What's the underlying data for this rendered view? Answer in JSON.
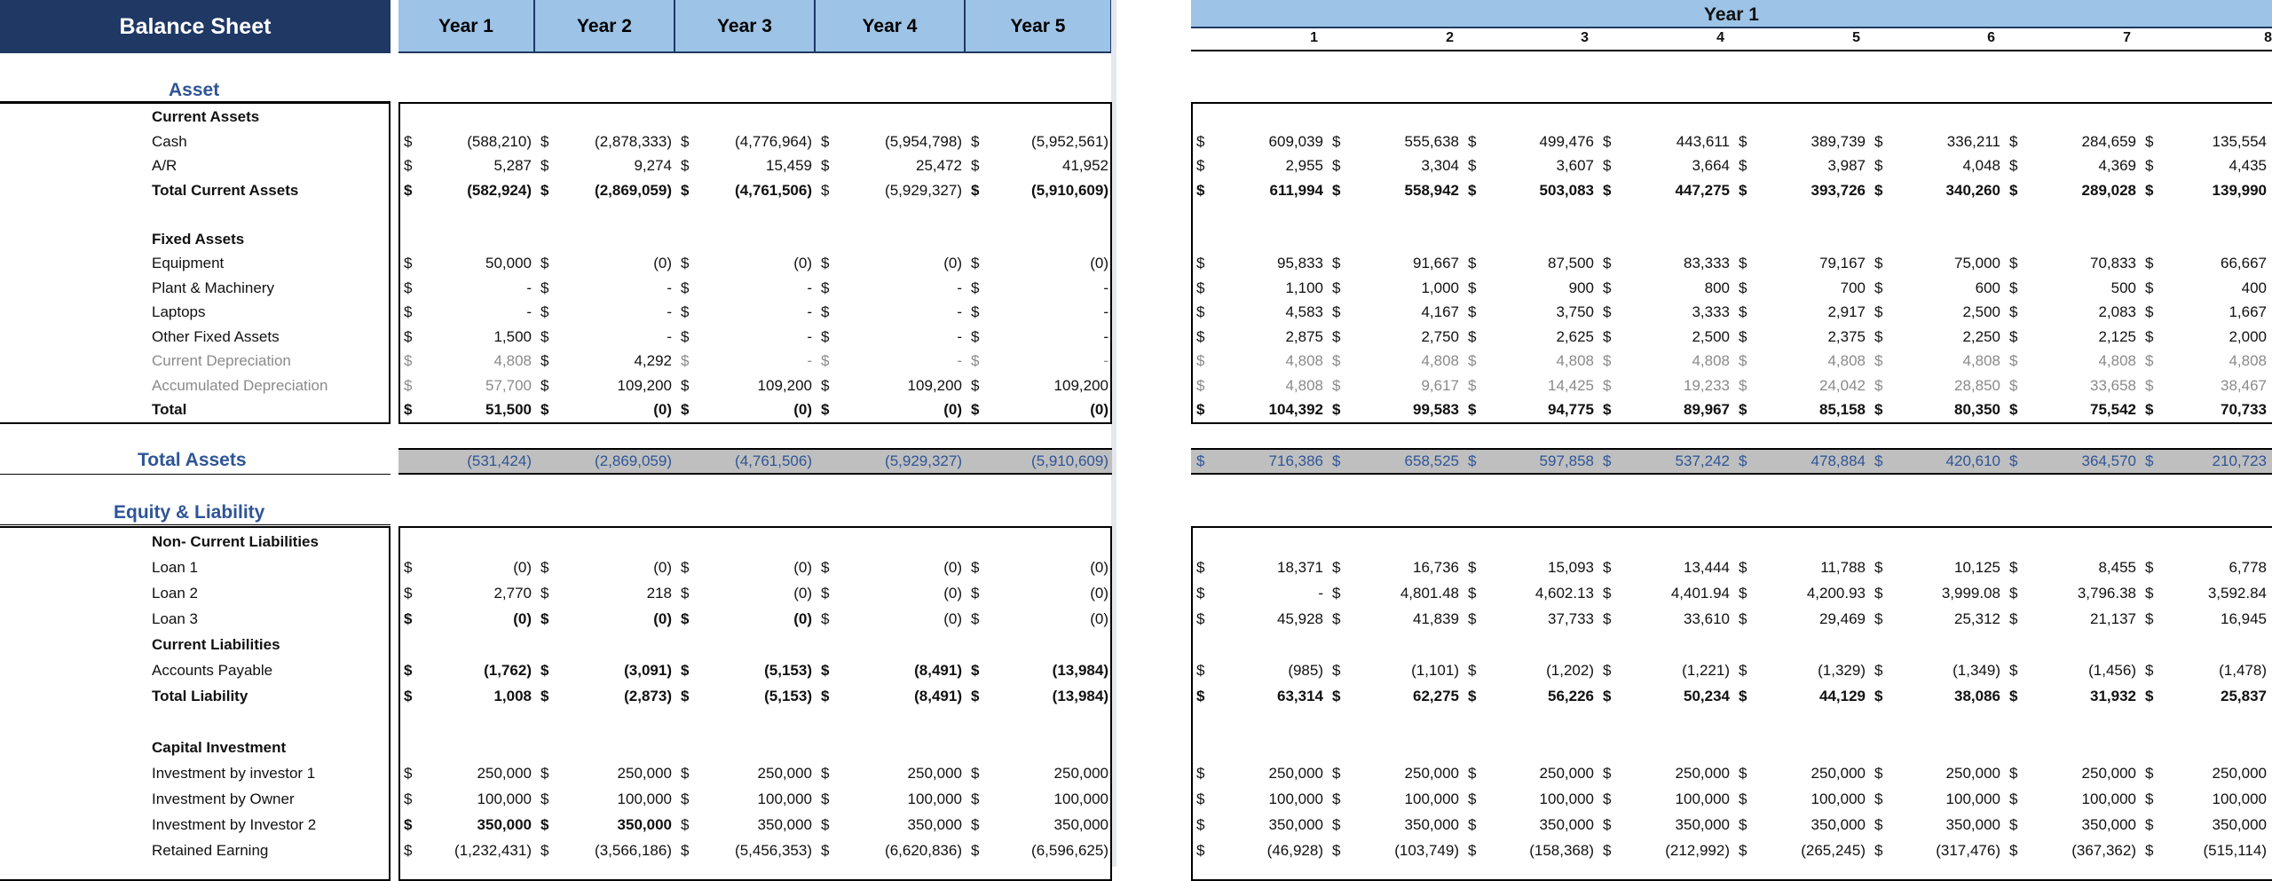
{
  "title": "Balance Sheet",
  "years": [
    "Year 1",
    "Year 2",
    "Year 3",
    "Year 4",
    "Year 5"
  ],
  "right_header": {
    "year_label": "Year 1",
    "months": [
      "1",
      "2",
      "3",
      "4",
      "5",
      "6",
      "7",
      "8"
    ]
  },
  "currency_symbol": "$",
  "colors": {
    "header_navy": "#1f3864",
    "header_blue": "#9dc3e6",
    "section_blue": "#2f5597",
    "total_band": "#bfbfbf"
  },
  "sections": {
    "asset": "Asset",
    "total_assets": "Total Assets",
    "equity_liability": "Equity & Liability"
  },
  "rows": [
    {
      "label": "Current Assets",
      "style": "bold",
      "annual": [],
      "monthly": []
    },
    {
      "label": "Cash",
      "style": "",
      "annual": [
        "(588,210)",
        "(2,878,333)",
        "(4,776,964)",
        "(5,954,798)",
        "(5,952,561)"
      ],
      "monthly": [
        "609,039",
        "555,638",
        "499,476",
        "443,611",
        "389,739",
        "336,211",
        "284,659",
        "135,554"
      ]
    },
    {
      "label": "A/R",
      "style": "",
      "annual": [
        "5,287",
        "9,274",
        "15,459",
        "25,472",
        "41,952"
      ],
      "monthly": [
        "2,955",
        "3,304",
        "3,607",
        "3,664",
        "3,987",
        "4,048",
        "4,369",
        "4,435"
      ]
    },
    {
      "label": "Total Current Assets",
      "style": "bold",
      "annual": [
        "(582,924)",
        "(2,869,059)",
        "(4,761,506)",
        "(5,929,327)",
        "(5,910,609)"
      ],
      "annual_bold": [
        true,
        true,
        true,
        false,
        true
      ],
      "monthly": [
        "611,994",
        "558,942",
        "503,083",
        "447,275",
        "393,726",
        "340,260",
        "289,028",
        "139,990"
      ]
    },
    {
      "label": "",
      "style": "",
      "annual": [],
      "monthly": []
    },
    {
      "label": "Fixed Assets",
      "style": "bold",
      "annual": [],
      "monthly": []
    },
    {
      "label": "Equipment",
      "style": "",
      "annual": [
        "50,000",
        "(0)",
        "(0)",
        "(0)",
        "(0)"
      ],
      "monthly": [
        "95,833",
        "91,667",
        "87,500",
        "83,333",
        "79,167",
        "75,000",
        "70,833",
        "66,667"
      ]
    },
    {
      "label": "Plant & Machinery",
      "style": "",
      "annual": [
        "-",
        "-",
        "-",
        "-",
        "-"
      ],
      "monthly": [
        "1,100",
        "1,000",
        "900",
        "800",
        "700",
        "600",
        "500",
        "400"
      ]
    },
    {
      "label": "Laptops",
      "style": "",
      "annual": [
        "-",
        "-",
        "-",
        "-",
        "-"
      ],
      "monthly": [
        "4,583",
        "4,167",
        "3,750",
        "3,333",
        "2,917",
        "2,500",
        "2,083",
        "1,667"
      ]
    },
    {
      "label": "Other Fixed Assets",
      "style": "",
      "annual": [
        "1,500",
        "-",
        "-",
        "-",
        "-"
      ],
      "monthly": [
        "2,875",
        "2,750",
        "2,625",
        "2,500",
        "2,375",
        "2,250",
        "2,125",
        "2,000"
      ]
    },
    {
      "label": "Current Depreciation",
      "style": "grey",
      "annual": [
        "4,808",
        "4,292",
        "-",
        "-",
        "-"
      ],
      "annual_grey": [
        true,
        false,
        true,
        true,
        true
      ],
      "monthly": [
        "4,808",
        "4,808",
        "4,808",
        "4,808",
        "4,808",
        "4,808",
        "4,808",
        "4,808"
      ]
    },
    {
      "label": "Accumulated Depreciation",
      "style": "grey",
      "annual": [
        "57,700",
        "109,200",
        "109,200",
        "109,200",
        "109,200"
      ],
      "annual_grey": [
        true,
        false,
        false,
        false,
        false
      ],
      "monthly": [
        "4,808",
        "9,617",
        "14,425",
        "19,233",
        "24,042",
        "28,850",
        "33,658",
        "38,467"
      ]
    },
    {
      "label": "Total",
      "style": "bold",
      "annual": [
        "51,500",
        "(0)",
        "(0)",
        "(0)",
        "(0)"
      ],
      "monthly": [
        "104,392",
        "99,583",
        "94,775",
        "89,967",
        "85,158",
        "80,350",
        "75,542",
        "70,733"
      ]
    }
  ],
  "total_assets": {
    "annual": [
      "(531,424)",
      "(2,869,059)",
      "(4,761,506)",
      "(5,929,327)",
      "(5,910,609)"
    ],
    "monthly": [
      "716,386",
      "658,525",
      "597,858",
      "537,242",
      "478,884",
      "420,610",
      "364,570",
      "210,723"
    ]
  },
  "rows2": [
    {
      "label": "Non- Current Liabilities",
      "style": "bold",
      "annual": [],
      "monthly": []
    },
    {
      "label": "Loan 1",
      "style": "",
      "annual": [
        "(0)",
        "(0)",
        "(0)",
        "(0)",
        "(0)"
      ],
      "monthly": [
        "18,371",
        "16,736",
        "15,093",
        "13,444",
        "11,788",
        "10,125",
        "8,455",
        "6,778"
      ]
    },
    {
      "label": "Loan 2",
      "style": "",
      "annual": [
        "2,770",
        "218",
        "(0)",
        "(0)",
        "(0)"
      ],
      "monthly": [
        "-",
        "4,801.48",
        "4,602.13",
        "4,401.94",
        "4,200.93",
        "3,999.08",
        "3,796.38",
        "3,592.84"
      ]
    },
    {
      "label": "Loan 3",
      "style": "",
      "annual": [
        "(0)",
        "(0)",
        "(0)",
        "(0)",
        "(0)"
      ],
      "annual_bold": [
        true,
        true,
        true,
        false,
        false
      ],
      "monthly": [
        "45,928",
        "41,839",
        "37,733",
        "33,610",
        "29,469",
        "25,312",
        "21,137",
        "16,945"
      ]
    },
    {
      "label": "Current Liabilities",
      "style": "bold",
      "annual": [],
      "monthly": []
    },
    {
      "label": "Accounts Payable",
      "style": "",
      "annual": [
        "(1,762)",
        "(3,091)",
        "(5,153)",
        "(8,491)",
        "(13,984)"
      ],
      "annual_bold": [
        true,
        true,
        true,
        true,
        true
      ],
      "monthly": [
        "(985)",
        "(1,101)",
        "(1,202)",
        "(1,221)",
        "(1,329)",
        "(1,349)",
        "(1,456)",
        "(1,478)"
      ]
    },
    {
      "label": "Total Liability",
      "style": "bold",
      "annual": [
        "1,008",
        "(2,873)",
        "(5,153)",
        "(8,491)",
        "(13,984)"
      ],
      "monthly": [
        "63,314",
        "62,275",
        "56,226",
        "50,234",
        "44,129",
        "38,086",
        "31,932",
        "25,837"
      ]
    },
    {
      "label": "",
      "style": "",
      "annual": [],
      "monthly": []
    },
    {
      "label": "Capital Investment",
      "style": "bold",
      "annual": [],
      "monthly": []
    },
    {
      "label": "Investment by investor 1",
      "style": "",
      "annual": [
        "250,000",
        "250,000",
        "250,000",
        "250,000",
        "250,000"
      ],
      "monthly": [
        "250,000",
        "250,000",
        "250,000",
        "250,000",
        "250,000",
        "250,000",
        "250,000",
        "250,000"
      ]
    },
    {
      "label": "Investment by Owner",
      "style": "",
      "annual": [
        "100,000",
        "100,000",
        "100,000",
        "100,000",
        "100,000"
      ],
      "monthly": [
        "100,000",
        "100,000",
        "100,000",
        "100,000",
        "100,000",
        "100,000",
        "100,000",
        "100,000"
      ]
    },
    {
      "label": "Investment by Investor 2",
      "style": "",
      "annual": [
        "350,000",
        "350,000",
        "350,000",
        "350,000",
        "350,000"
      ],
      "annual_bold": [
        true,
        true,
        false,
        false,
        false
      ],
      "monthly": [
        "350,000",
        "350,000",
        "350,000",
        "350,000",
        "350,000",
        "350,000",
        "350,000",
        "350,000"
      ]
    },
    {
      "label": "Retained Earning",
      "style": "",
      "annual": [
        "(1,232,431)",
        "(3,566,186)",
        "(5,456,353)",
        "(6,620,836)",
        "(6,596,625)"
      ],
      "monthly": [
        "(46,928)",
        "(103,749)",
        "(158,368)",
        "(212,992)",
        "(265,245)",
        "(317,476)",
        "(367,362)",
        "(515,114)"
      ]
    }
  ]
}
